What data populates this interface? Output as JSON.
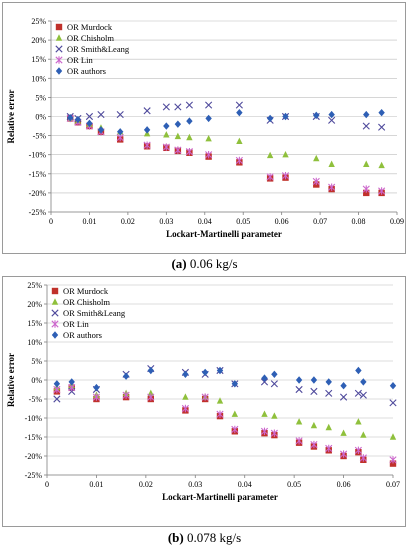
{
  "chart_data": [
    {
      "type": "scatter",
      "xlabel": "Lockart-Martinelli parameter",
      "ylabel": "Relative error",
      "xlim": [
        0,
        0.09
      ],
      "ylim": [
        -25,
        25
      ],
      "xticks": [
        "0",
        "0.01",
        "0.02",
        "0.03",
        "0.04",
        "0.05",
        "0.06",
        "0.07",
        "0.08",
        "0.09"
      ],
      "yticks": [
        "25%",
        "20%",
        "15%",
        "10%",
        "5%",
        "0%",
        "-5%",
        "-10%",
        "-15%",
        "-20%",
        "-25%"
      ],
      "grid": true,
      "legend": "top-left",
      "series": [
        {
          "name": "OR Murdock",
          "marker": "square",
          "color": "#c0312b",
          "x": [
            0.005,
            0.007,
            0.01,
            0.013,
            0.018,
            0.025,
            0.03,
            0.033,
            0.036,
            0.041,
            0.049,
            0.057,
            0.061,
            0.069,
            0.073,
            0.082,
            0.086
          ],
          "y": [
            -0.5,
            -1.5,
            -2.5,
            -4,
            -6,
            -7.8,
            -8.2,
            -9,
            -9.5,
            -10.5,
            -12,
            -16.2,
            -16,
            -17.8,
            -19,
            -20,
            -20
          ]
        },
        {
          "name": "OR Chisholm",
          "marker": "triangle",
          "color": "#8fc03c",
          "x": [
            0.005,
            0.007,
            0.01,
            0.013,
            0.018,
            0.025,
            0.03,
            0.033,
            0.036,
            0.041,
            0.049,
            0.057,
            0.061,
            0.069,
            0.073,
            0.082,
            0.086
          ],
          "y": [
            -0.5,
            -1.2,
            -2,
            -3,
            -4,
            -4.5,
            -4.8,
            -5.2,
            -5.5,
            -5.8,
            -6.5,
            -10.2,
            -10,
            -11,
            -12.5,
            -12.5,
            -12.8
          ]
        },
        {
          "name": "OR Smith&Leang",
          "marker": "x",
          "color": "#4f4a9c",
          "x": [
            0.005,
            0.007,
            0.01,
            0.013,
            0.018,
            0.025,
            0.03,
            0.033,
            0.036,
            0.041,
            0.049,
            0.057,
            0.061,
            0.069,
            0.073,
            0.082,
            0.086
          ],
          "y": [
            0,
            -0.5,
            0,
            0.5,
            0.5,
            1.5,
            2.5,
            2.5,
            3,
            3,
            3,
            -1,
            0,
            0,
            -1,
            -2.5,
            -2.8
          ]
        },
        {
          "name": "OR Lin",
          "marker": "asterisk",
          "color": "#cc66cc",
          "x": [
            0.005,
            0.007,
            0.01,
            0.013,
            0.018,
            0.025,
            0.03,
            0.033,
            0.036,
            0.041,
            0.049,
            0.057,
            0.061,
            0.069,
            0.073,
            0.082,
            0.086
          ],
          "y": [
            -0.5,
            -1.5,
            -2.5,
            -4,
            -5.5,
            -7.5,
            -8,
            -8.8,
            -9.2,
            -10,
            -11.5,
            -15.8,
            -15.5,
            -17,
            -18.5,
            -19,
            -19.5
          ]
        },
        {
          "name": "OR authors",
          "marker": "diamond",
          "color": "#2e5fb5",
          "x": [
            0.005,
            0.007,
            0.01,
            0.013,
            0.018,
            0.025,
            0.03,
            0.033,
            0.036,
            0.041,
            0.049,
            0.057,
            0.061,
            0.069,
            0.073,
            0.082,
            0.086
          ],
          "y": [
            -0.3,
            -0.8,
            -1.8,
            -3.5,
            -4,
            -3.5,
            -2.5,
            -2,
            -1.2,
            -0.5,
            1,
            -0.5,
            0,
            0.3,
            0.5,
            0.5,
            1
          ]
        }
      ]
    },
    {
      "type": "scatter",
      "xlabel": "Lockart-Martinelli parameter",
      "ylabel": "Relative error",
      "xlim": [
        0,
        0.07
      ],
      "ylim": [
        -25,
        25
      ],
      "xticks": [
        "0",
        "0.01",
        "0.02",
        "0.03",
        "0.04",
        "0.05",
        "0.06",
        "0.07"
      ],
      "yticks": [
        "25%",
        "20%",
        "15%",
        "10%",
        "5%",
        "0%",
        "-5%",
        "-10%",
        "-15%",
        "-20%",
        "-25%"
      ],
      "grid": true,
      "legend": "top-left",
      "series": [
        {
          "name": "OR Murdock",
          "marker": "square",
          "color": "#c0312b",
          "x": [
            0.002,
            0.005,
            0.01,
            0.016,
            0.021,
            0.028,
            0.032,
            0.035,
            0.038,
            0.044,
            0.046,
            0.051,
            0.054,
            0.057,
            0.06,
            0.063,
            0.064,
            0.07
          ],
          "y": [
            -3,
            -2,
            -5,
            -4.5,
            -5,
            -8,
            -5,
            -9.5,
            -13.5,
            -14,
            -14.5,
            -16.5,
            -17.5,
            -18.5,
            -20,
            -19,
            -21,
            -22
          ]
        },
        {
          "name": "OR Chisholm",
          "marker": "triangle",
          "color": "#8fc03c",
          "x": [
            0.002,
            0.005,
            0.01,
            0.016,
            0.021,
            0.028,
            0.032,
            0.035,
            0.038,
            0.044,
            0.046,
            0.051,
            0.054,
            0.057,
            0.06,
            0.063,
            0.064,
            0.07
          ],
          "y": [
            -2,
            -1.5,
            -4,
            -3.5,
            -3.5,
            -4.5,
            -4.5,
            -5.5,
            -9,
            -9,
            -9.5,
            -11,
            -12,
            -12.5,
            -14,
            -11,
            -14.5,
            -15
          ]
        },
        {
          "name": "OR Smith&Leang",
          "marker": "x",
          "color": "#4f4a9c",
          "x": [
            0.002,
            0.005,
            0.01,
            0.016,
            0.021,
            0.028,
            0.032,
            0.035,
            0.038,
            0.044,
            0.046,
            0.051,
            0.054,
            0.057,
            0.06,
            0.063,
            0.064,
            0.07
          ],
          "y": [
            -5,
            -3,
            -2.5,
            1.5,
            3,
            2,
            1.5,
            2.5,
            -1,
            -0.5,
            -1,
            -2.5,
            -3,
            -3.5,
            -4.5,
            -3.5,
            -4,
            -6
          ]
        },
        {
          "name": "OR Lin",
          "marker": "asterisk",
          "color": "#cc66cc",
          "x": [
            0.002,
            0.005,
            0.01,
            0.016,
            0.021,
            0.028,
            0.032,
            0.035,
            0.038,
            0.044,
            0.046,
            0.051,
            0.054,
            0.057,
            0.06,
            0.063,
            0.064,
            0.07
          ],
          "y": [
            -2.5,
            -2,
            -4.5,
            -4,
            -4.5,
            -7.5,
            -4.5,
            -9,
            -13,
            -13.5,
            -14,
            -16,
            -17,
            -18,
            -19.5,
            -18.5,
            -20.5,
            -21
          ]
        },
        {
          "name": "OR authors",
          "marker": "diamond",
          "color": "#2e5fb5",
          "x": [
            0.002,
            0.005,
            0.01,
            0.016,
            0.021,
            0.028,
            0.032,
            0.035,
            0.038,
            0.044,
            0.046,
            0.051,
            0.054,
            0.057,
            0.06,
            0.063,
            0.064,
            0.07
          ],
          "y": [
            -1,
            -0.5,
            -2,
            1,
            2.5,
            1.5,
            2,
            2.5,
            -1,
            0.5,
            1.5,
            0,
            0,
            -0.5,
            -1.5,
            2.5,
            -0.5,
            -1.5
          ]
        }
      ]
    }
  ],
  "captions": [
    {
      "letter": "(a)",
      "text": " 0.06 kg/s"
    },
    {
      "letter": "(b)",
      "text": " 0.078 kg/s"
    }
  ]
}
